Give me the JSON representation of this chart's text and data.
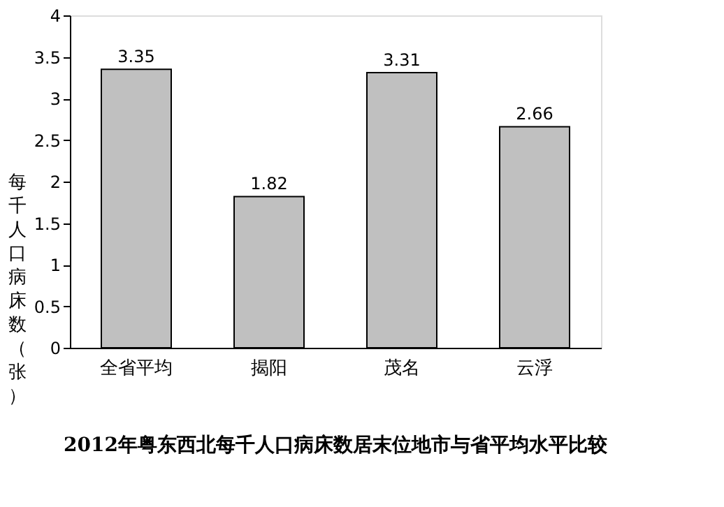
{
  "chart_data": {
    "type": "bar",
    "title": "2012年粤东西北每千人口病床数居末位地市与省平均水平比较",
    "ylabel": "每千人口病床数（张）",
    "categories": [
      "全省平均",
      "揭阳",
      "茂名",
      "云浮"
    ],
    "values": [
      3.35,
      1.82,
      3.31,
      2.66
    ],
    "color": "#c0c0c0",
    "ylim": [
      0,
      4
    ],
    "yticks": [
      0,
      0.5,
      1,
      1.5,
      2,
      2.5,
      3,
      3.5,
      4
    ],
    "grid": false,
    "data_labels": true
  }
}
